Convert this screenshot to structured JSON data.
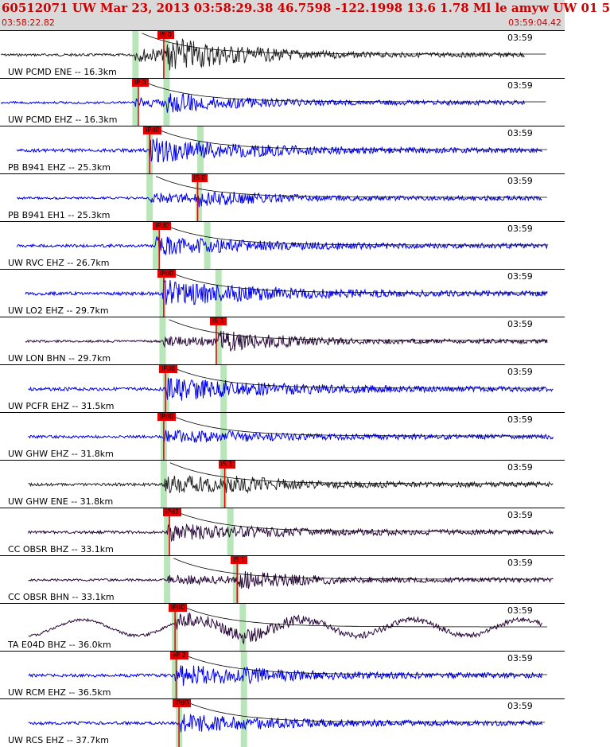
{
  "header": {
    "title": "60512071 UW Mar 23, 2013 03:58:29.38   46.7598 -122.1998 13.6 1.78 Ml le amyw UW 01   5",
    "time_start": "03:58:22.82",
    "time_end": "03:59:04.42"
  },
  "colors": {
    "header_bg": "#d9d9d9",
    "title": "#cc0000",
    "pick": "#e00000",
    "window": "#b9e6b9",
    "curve": "#000000",
    "blue": "#0000ee",
    "black": "#222222",
    "purple": "#2a0a3a"
  },
  "traces": [
    {
      "label": "UW PCMD ENE -- 16.3km",
      "time": "03:59",
      "pick": "iS 0",
      "pickT": 0.29,
      "p": 0.24,
      "s": 0.295,
      "color": "black",
      "start": 0.002,
      "end": 0.93,
      "amp": 0.25,
      "onset": 0.24,
      "sAmp": 0.9
    },
    {
      "label": "UW PCMD EHZ -- 16.3km",
      "time": "03:59",
      "pick": "iP 0",
      "pickT": 0.245,
      "p": 0.24,
      "s": 0.295,
      "color": "blue",
      "start": 0.002,
      "end": 0.93,
      "amp": 0.15,
      "onset": 0.24,
      "sAmp": 0.5
    },
    {
      "label": "PB B941 EHZ -- 25.3km",
      "time": "03:59",
      "pick": "iPd0",
      "pickT": 0.265,
      "p": 0.265,
      "s": 0.355,
      "color": "blue",
      "start": 0.03,
      "end": 0.96,
      "amp": 0.55,
      "onset": 0.265,
      "sAmp": 0.3
    },
    {
      "label": "PB B941 EH1 -- 25.3km",
      "time": "03:59",
      "pick": "iS 0",
      "pickT": 0.35,
      "p": 0.265,
      "s": 0.352,
      "color": "blue",
      "start": 0.03,
      "end": 0.96,
      "amp": 0.15,
      "onset": 0.265,
      "sAmp": 0.4
    },
    {
      "label": "UW RVC EHZ -- 26.7km",
      "time": "03:59",
      "pick": "iPd0",
      "pickT": 0.282,
      "p": 0.276,
      "s": 0.367,
      "color": "blue",
      "start": 0.03,
      "end": 0.97,
      "amp": 0.4,
      "onset": 0.276,
      "sAmp": 0.3
    },
    {
      "label": "UW LO2 EHZ -- 29.7km",
      "time": "03:59",
      "pick": "iPd0",
      "pickT": 0.29,
      "p": 0.288,
      "s": 0.387,
      "color": "blue",
      "start": 0.045,
      "end": 0.97,
      "amp": 0.6,
      "onset": 0.288,
      "sAmp": 0.4
    },
    {
      "label": "UW LON BHN -- 29.7km",
      "time": "03:59",
      "pick": "iS 1",
      "pickT": 0.383,
      "p": 0.288,
      "s": 0.387,
      "color": "purple",
      "start": 0.045,
      "end": 0.97,
      "amp": 0.15,
      "onset": 0.288,
      "sAmp": 0.5
    },
    {
      "label": "UW PCFR EHZ -- 31.5km",
      "time": "03:59",
      "pick": "iPd0",
      "pickT": 0.293,
      "p": 0.294,
      "s": 0.396,
      "color": "blue",
      "start": 0.05,
      "end": 0.98,
      "amp": 0.55,
      "onset": 0.294,
      "sAmp": 0.4
    },
    {
      "label": "UW GHW EHZ -- 31.8km",
      "time": "03:59",
      "pick": "iPd0",
      "pickT": 0.29,
      "p": 0.29,
      "s": 0.396,
      "color": "blue",
      "start": 0.05,
      "end": 0.98,
      "amp": 0.25,
      "onset": 0.29,
      "sAmp": 0.25
    },
    {
      "label": "UW GHW ENE -- 31.8km",
      "time": "03:59",
      "pick": "iS 1",
      "pickT": 0.398,
      "p": 0.29,
      "s": 0.396,
      "color": "black",
      "start": 0.05,
      "end": 0.98,
      "amp": 0.4,
      "onset": 0.29,
      "sAmp": 0.45
    },
    {
      "label": "CC OBSR BHZ -- 33.1km",
      "time": "03:59",
      "pick": "iPd1",
      "pickT": 0.3,
      "p": 0.296,
      "s": 0.408,
      "color": "purple",
      "start": 0.05,
      "end": 0.98,
      "amp": 0.35,
      "onset": 0.296,
      "sAmp": 0.3
    },
    {
      "label": "CC OBSR BHN -- 33.1km",
      "time": "03:59",
      "pick": "iS 1",
      "pickT": 0.42,
      "p": 0.296,
      "s": 0.418,
      "color": "purple",
      "start": 0.05,
      "end": 0.98,
      "amp": 0.15,
      "onset": 0.296,
      "sAmp": 0.45
    },
    {
      "label": "TA E04D BHZ -- 36.0km",
      "time": "03:59",
      "pick": "iPd0",
      "pickT": 0.31,
      "p": 0.31,
      "s": 0.43,
      "color": "purple",
      "start": 0.05,
      "end": 0.96,
      "amp": 0.3,
      "onset": 0.31,
      "sAmp": 0.35
    },
    {
      "label": "UW RCM EHZ -- 36.5km",
      "time": "03:59",
      "pick": "eP 2",
      "pickT": 0.312,
      "p": 0.31,
      "s": 0.432,
      "color": "blue",
      "start": 0.05,
      "end": 0.96,
      "amp": 0.45,
      "onset": 0.31,
      "sAmp": 0.4
    },
    {
      "label": "UW RCS EHZ -- 37.7km",
      "time": "03:59",
      "pick": "iPd0",
      "pickT": 0.317,
      "p": 0.317,
      "s": 0.432,
      "color": "blue",
      "start": 0.05,
      "end": 0.96,
      "amp": 0.4,
      "onset": 0.317,
      "sAmp": 0.3
    }
  ]
}
